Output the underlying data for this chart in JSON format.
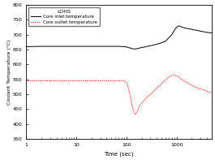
{
  "title": "LOHS",
  "xlabel": "Time (sec)",
  "ylabel": "Coolant Temperature (°C)",
  "legend": [
    "Core inlet temperature",
    "Core outlet temperature"
  ],
  "xlim": [
    1,
    5000
  ],
  "ylim": [
    350,
    800
  ],
  "yticks": [
    350,
    400,
    450,
    500,
    550,
    600,
    650,
    700,
    750,
    800
  ],
  "xticks": [
    1,
    10,
    100,
    1000
  ],
  "inlet_color": "#000000",
  "outlet_color": "#ff0000",
  "bg_color": "#ffffff",
  "inlet_data": [
    [
      1,
      660
    ],
    [
      2,
      661
    ],
    [
      3,
      661
    ],
    [
      5,
      661
    ],
    [
      8,
      661
    ],
    [
      12,
      661
    ],
    [
      20,
      661
    ],
    [
      30,
      661
    ],
    [
      50,
      661
    ],
    [
      70,
      661
    ],
    [
      90,
      660
    ],
    [
      100,
      659
    ],
    [
      120,
      655
    ],
    [
      140,
      652
    ],
    [
      160,
      653
    ],
    [
      180,
      655
    ],
    [
      200,
      657
    ],
    [
      250,
      660
    ],
    [
      300,
      663
    ],
    [
      400,
      668
    ],
    [
      500,
      673
    ],
    [
      600,
      678
    ],
    [
      700,
      690
    ],
    [
      800,
      700
    ],
    [
      900,
      715
    ],
    [
      1000,
      725
    ],
    [
      1100,
      730
    ],
    [
      1200,
      728
    ],
    [
      1300,
      725
    ],
    [
      1500,
      722
    ],
    [
      1800,
      720
    ],
    [
      2000,
      718
    ],
    [
      2500,
      715
    ],
    [
      3000,
      712
    ],
    [
      3500,
      710
    ],
    [
      4000,
      708
    ],
    [
      4500,
      707
    ],
    [
      5000,
      706
    ]
  ],
  "outlet_data": [
    [
      1,
      545
    ],
    [
      2,
      545
    ],
    [
      3,
      545
    ],
    [
      5,
      545
    ],
    [
      8,
      545
    ],
    [
      12,
      545
    ],
    [
      20,
      545
    ],
    [
      30,
      545
    ],
    [
      50,
      545
    ],
    [
      70,
      545
    ],
    [
      90,
      545
    ],
    [
      100,
      540
    ],
    [
      110,
      520
    ],
    [
      120,
      490
    ],
    [
      130,
      460
    ],
    [
      140,
      440
    ],
    [
      150,
      432
    ],
    [
      160,
      438
    ],
    [
      170,
      448
    ],
    [
      180,
      460
    ],
    [
      200,
      470
    ],
    [
      220,
      478
    ],
    [
      250,
      488
    ],
    [
      300,
      500
    ],
    [
      350,
      510
    ],
    [
      400,
      520
    ],
    [
      450,
      528
    ],
    [
      500,
      535
    ],
    [
      600,
      548
    ],
    [
      700,
      558
    ],
    [
      800,
      563
    ],
    [
      900,
      564
    ],
    [
      1000,
      562
    ],
    [
      1100,
      558
    ],
    [
      1200,
      554
    ],
    [
      1300,
      548
    ],
    [
      1500,
      542
    ],
    [
      1800,
      535
    ],
    [
      2000,
      530
    ],
    [
      2500,
      522
    ],
    [
      3000,
      518
    ],
    [
      3500,
      514
    ],
    [
      4000,
      510
    ],
    [
      4500,
      507
    ],
    [
      5000,
      505
    ]
  ]
}
